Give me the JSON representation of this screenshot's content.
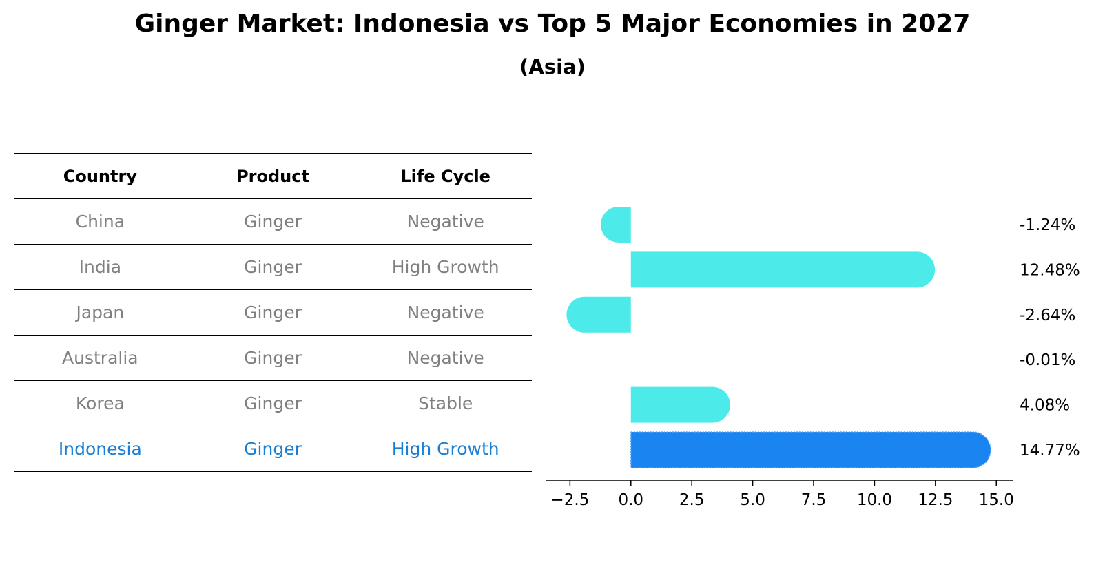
{
  "title": "Ginger Market: Indonesia vs Top 5 Major Economies in 2027",
  "subtitle": "(Asia)",
  "table": {
    "headers": [
      "Country",
      "Product",
      "Life Cycle"
    ],
    "rows": [
      [
        "China",
        "Ginger",
        "Negative"
      ],
      [
        "India",
        "Ginger",
        "High Growth"
      ],
      [
        "Japan",
        "Ginger",
        "Negative"
      ],
      [
        "Australia",
        "Ginger",
        "Negative"
      ],
      [
        "Korea",
        "Ginger",
        "Stable"
      ],
      [
        "Indonesia",
        "Ginger",
        "High Growth"
      ]
    ],
    "highlight_row": 5
  },
  "colors": {
    "bar": "#4deaea",
    "highlight_bar": "#1a85f0",
    "highlight_text": "#1a7fd4",
    "row_text": "#808080"
  },
  "chart_data": {
    "type": "bar",
    "orientation": "horizontal",
    "categories": [
      "China",
      "India",
      "Japan",
      "Australia",
      "Korea",
      "Indonesia"
    ],
    "values": [
      -1.24,
      12.48,
      -2.64,
      -0.01,
      4.08,
      14.77
    ],
    "value_labels": [
      "-1.24%",
      "12.48%",
      "-2.64%",
      "-0.01%",
      "4.08%",
      "14.77%"
    ],
    "highlight": "Indonesia",
    "xlim": [
      -3.5,
      15.7
    ],
    "xticks": [
      -2.5,
      0.0,
      2.5,
      5.0,
      7.5,
      10.0,
      12.5,
      15.0
    ],
    "xtick_labels": [
      "−2.5",
      "0.0",
      "2.5",
      "5.0",
      "7.5",
      "10.0",
      "12.5",
      "15.0"
    ],
    "grid": false
  }
}
